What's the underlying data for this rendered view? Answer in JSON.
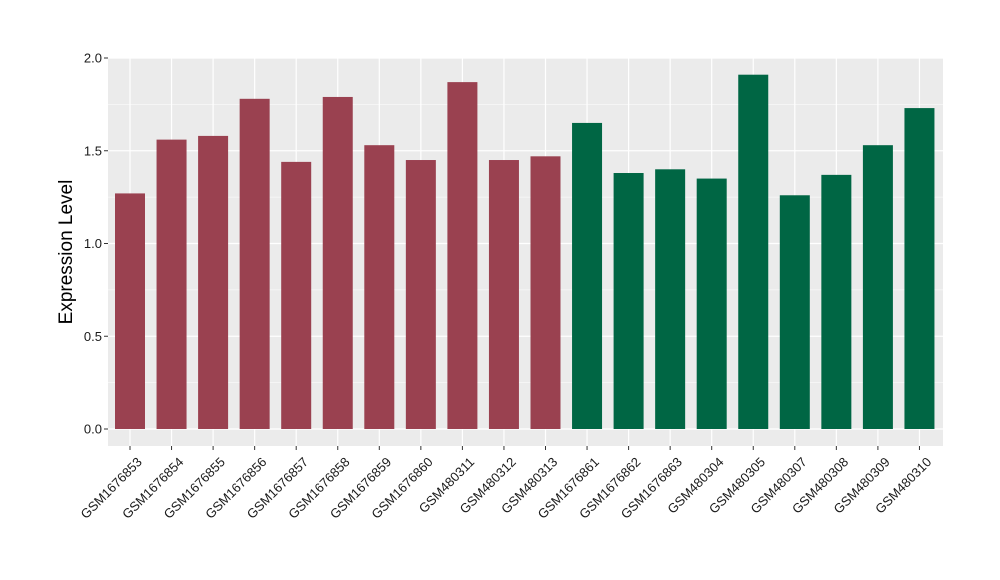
{
  "chart_data": {
    "type": "bar",
    "title": "",
    "xlabel": "",
    "ylabel": "Expression Level",
    "ylim": [
      -0.09,
      2.0
    ],
    "yticks": [
      0.0,
      0.5,
      1.0,
      1.5,
      2.0
    ],
    "ytick_labels": [
      "0.0",
      "0.5",
      "1.0",
      "1.5",
      "2.0"
    ],
    "grid": true,
    "legend": "none",
    "categories": [
      "GSM1676853",
      "GSM1676854",
      "GSM1676855",
      "GSM1676856",
      "GSM1676857",
      "GSM1676858",
      "GSM1676859",
      "GSM1676860",
      "GSM480311",
      "GSM480312",
      "GSM480313",
      "GSM1676861",
      "GSM1676862",
      "GSM1676863",
      "GSM480304",
      "GSM480305",
      "GSM480307",
      "GSM480308",
      "GSM480309",
      "GSM480310"
    ],
    "values": [
      1.27,
      1.56,
      1.58,
      1.78,
      1.44,
      1.79,
      1.53,
      1.45,
      1.87,
      1.45,
      1.47,
      1.65,
      1.38,
      1.4,
      1.35,
      1.91,
      1.26,
      1.37,
      1.53,
      1.73
    ],
    "groups": [
      0,
      0,
      0,
      0,
      0,
      0,
      0,
      0,
      0,
      0,
      0,
      1,
      1,
      1,
      1,
      1,
      1,
      1,
      1,
      1
    ],
    "colors": [
      "#9a4150",
      "#006644"
    ],
    "panel_background": "#ebebeb",
    "grid_color": "#ffffff"
  }
}
